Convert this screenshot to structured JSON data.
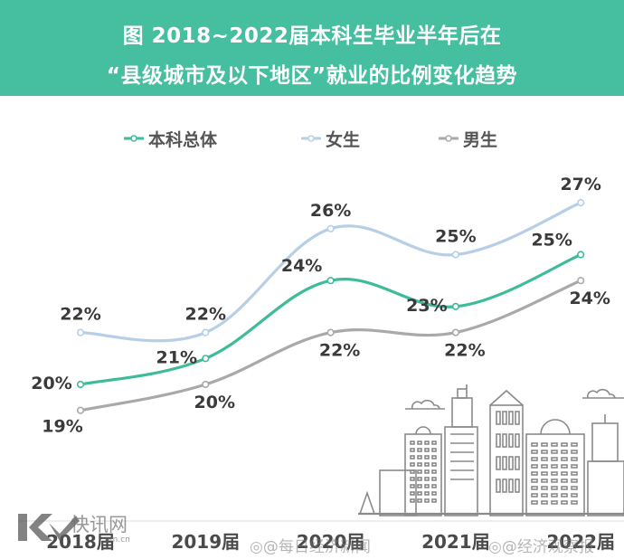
{
  "header": {
    "title_line1": "图  2018~2022届本科生毕业半年后在",
    "title_line2": "“县级城市及以下地区”就业的比例变化趋势",
    "background": "#45bf9f"
  },
  "chart_data": {
    "type": "line",
    "title": "图 2018~2022届本科生毕业半年后在“县级城市及以下地区”就业的比例变化趋势",
    "xlabel": "",
    "ylabel": "",
    "categories": [
      "2018届",
      "2019届",
      "2020届",
      "2021届",
      "2022届"
    ],
    "y_unit": "%",
    "ylim": [
      18,
      28
    ],
    "grid": false,
    "legend_position": "top",
    "series": [
      {
        "name": "本科总体",
        "color": "#3dbb9a",
        "values": [
          20,
          21,
          24,
          23,
          25
        ],
        "labels": [
          "20%",
          "21%",
          "24%",
          "23%",
          "25%"
        ]
      },
      {
        "name": "女生",
        "color": "#b7cfe6",
        "values": [
          22,
          22,
          26,
          25,
          27
        ],
        "labels": [
          "22%",
          "22%",
          "26%",
          "25%",
          "27%"
        ]
      },
      {
        "name": "男生",
        "color": "#a9a9a9",
        "values": [
          19,
          20,
          22,
          22,
          24
        ],
        "labels": [
          "19%",
          "20%",
          "22%",
          "22%",
          "24%"
        ]
      }
    ]
  },
  "watermarks": {
    "logo_text": "快讯网",
    "logo_url": "om.cn",
    "weibo_1": "@每日经济新闻",
    "weibo_2": "@经济观察报"
  }
}
